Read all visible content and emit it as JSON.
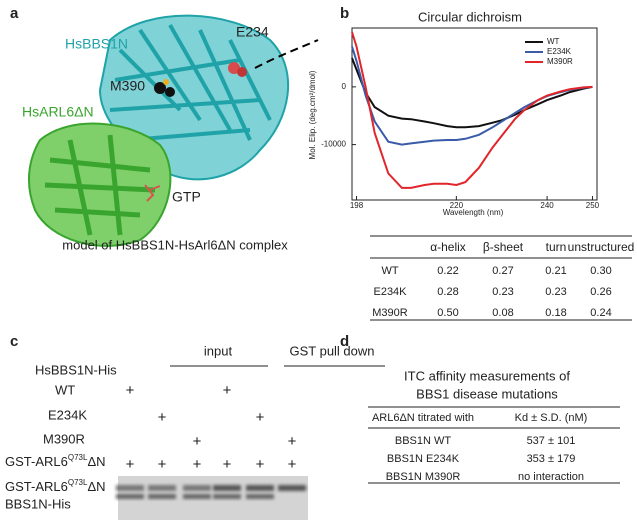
{
  "panel_letters": [
    "a",
    "b",
    "c",
    "d"
  ],
  "structure": {
    "labels": {
      "bbs1n": "HsBBS1N",
      "e234": "E234",
      "m390": "M390",
      "arl6": "HsARL6ΔN",
      "gtp": "GTP"
    },
    "caption": "model of HsBBS1N-HsArl6ΔN complex"
  },
  "chart_data": {
    "type": "line",
    "title": "Circular dichroism",
    "x_label": "Wavelength (nm)",
    "y_label": "Mol. Elip. (deg.cm²/dmol)",
    "x": [
      197,
      198,
      200,
      202,
      205,
      208,
      210,
      213,
      215,
      218,
      220,
      222,
      225,
      228,
      230,
      233,
      235,
      238,
      240,
      243,
      245,
      248,
      250
    ],
    "series": [
      {
        "name": "WT",
        "color": "#111111",
        "values": [
          5000,
          3000,
          -1000,
          -3500,
          -5000,
          -5500,
          -5600,
          -6000,
          -6300,
          -6800,
          -7000,
          -7000,
          -6800,
          -6200,
          -5800,
          -4800,
          -4000,
          -3000,
          -2300,
          -1500,
          -900,
          -300,
          0
        ]
      },
      {
        "name": "E234K",
        "color": "#3a5ba8",
        "values": [
          7000,
          4500,
          -1500,
          -6000,
          -9500,
          -10000,
          -9800,
          -9500,
          -9300,
          -9200,
          -9200,
          -9000,
          -8300,
          -7000,
          -6000,
          -4500,
          -3500,
          -2300,
          -1600,
          -900,
          -500,
          -150,
          0
        ]
      },
      {
        "name": "M390R",
        "color": "#e0262b",
        "values": [
          9500,
          7000,
          0,
          -8000,
          -15000,
          -17500,
          -17500,
          -17000,
          -16800,
          -16800,
          -17000,
          -16500,
          -14000,
          -10500,
          -8500,
          -5500,
          -4000,
          -2300,
          -1500,
          -800,
          -400,
          -100,
          0
        ]
      }
    ],
    "xlim": [
      197,
      251
    ],
    "xticks": [
      198,
      220,
      240,
      250
    ],
    "ylim": [
      -19600,
      10200
    ],
    "yticks": [
      -10000,
      0
    ],
    "legend": "upper right"
  },
  "cd_table": {
    "header": [
      "α-helix",
      "β-sheet",
      "turn",
      "unstructured"
    ],
    "rows": [
      [
        "WT",
        "0.22",
        "0.27",
        "0.21",
        "0.30"
      ],
      [
        "E234K",
        "0.28",
        "0.23",
        "0.23",
        "0.26"
      ],
      [
        "M390R",
        "0.50",
        "0.08",
        "0.18",
        "0.24"
      ]
    ]
  },
  "pulldown": {
    "groups": [
      "input",
      "GST pull down"
    ],
    "bait_label": "HsBBS1N-His",
    "rows": [
      {
        "label": "WT",
        "cells": [
          "+",
          null,
          null,
          "+",
          null,
          null
        ]
      },
      {
        "label": "E234K",
        "cells": [
          null,
          "+",
          null,
          null,
          "+",
          null
        ]
      },
      {
        "label": "M390R",
        "cells": [
          null,
          null,
          "+",
          null,
          null,
          "+"
        ]
      },
      {
        "label": {
          "prefix": "GST-ARL6",
          "sup": "Q73L",
          "suffix": "ΔN"
        },
        "cells": [
          "+",
          "+",
          "+",
          "+",
          "+",
          "+"
        ]
      }
    ],
    "gel_labels": [
      {
        "prefix": "GST-ARL6",
        "sup": "Q73L",
        "suffix": "ΔN"
      },
      "BBS1N-His"
    ]
  },
  "itc": {
    "title": [
      "ITC affinity measurements of",
      "BBS1 disease mutations"
    ],
    "header": [
      "ARL6ΔN titrated with",
      "Kd ± S.D. (nM)"
    ],
    "rows": [
      [
        "BBS1N WT",
        "537 ± 101"
      ],
      [
        "BBS1N E234K",
        "353 ± 179"
      ],
      [
        "BBS1N M390R",
        "no interaction"
      ]
    ]
  }
}
